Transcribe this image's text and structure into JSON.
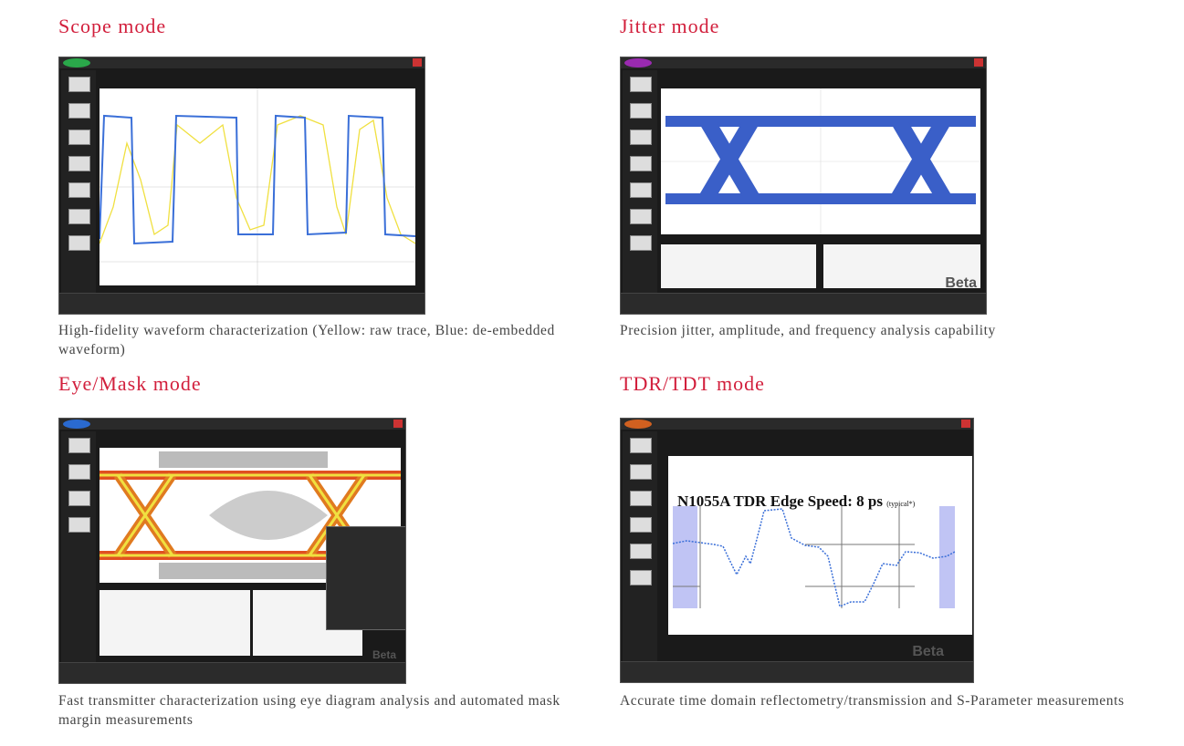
{
  "sections": [
    {
      "title": "Scope mode",
      "caption": "High-fidelity waveform characterization (Yellow: raw trace, Blue: de-embedded waveform)",
      "logo_color": "#2aa84a"
    },
    {
      "title": "Jitter mode",
      "caption": "Precision jitter, amplitude, and frequency analysis capability",
      "logo_color": "#9a2ab0",
      "overlay_text": "Beta"
    },
    {
      "title": "Eye/Mask mode",
      "caption": "Fast transmitter characterization using eye diagram analysis and automated mask margin measurements",
      "logo_color": "#2a6ad0",
      "overlay_text": "Beta"
    },
    {
      "title": "TDR/TDT mode",
      "caption": "Accurate time domain reflectometry/transmission and S-Parameter measurements",
      "logo_color": "#d06020",
      "slide_title": "N1055A TDR Edge Speed:  8 ps",
      "slide_note": "(typical*)",
      "overlay_text": "Beta"
    }
  ],
  "colors": {
    "title": "#d21f3c",
    "raw_trace": "#f0e040",
    "deembedded": "#3a6fd8",
    "eye": "#3a5fc8"
  }
}
